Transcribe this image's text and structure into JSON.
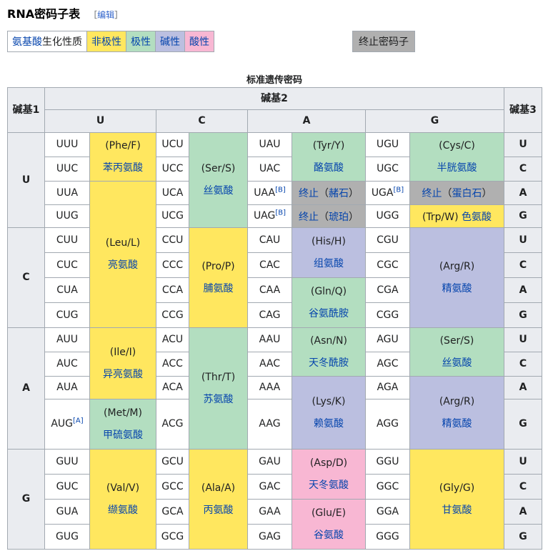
{
  "header": {
    "title": "RNA密码子表",
    "edit_open": "［",
    "edit_label": "编辑",
    "edit_close": "］"
  },
  "legend": {
    "link": "氨基酸",
    "rest": "生化性质",
    "nonpolar": "非极性",
    "polar": "极性",
    "basic": "碱性",
    "acidic": "酸性",
    "stop": "终止密码子"
  },
  "colors": {
    "nonpolar": "#ffe75f",
    "polar": "#b3dec0",
    "basic": "#bbbfe0",
    "acidic": "#f8b7d3",
    "stop": "#b0b0b0",
    "header": "#eaecf0",
    "link": "#0645ad"
  },
  "table": {
    "caption": "标准遗传密码",
    "base1_header": "碱基1",
    "base2_header": "碱基2",
    "base3_header": "碱基3",
    "base2": [
      "U",
      "C",
      "A",
      "G"
    ],
    "rows": [
      {
        "base1": "U",
        "codons": [
          [
            "UUU",
            "UCU",
            "UAU",
            "UGU"
          ],
          [
            "UUC",
            "UCC",
            "UAC",
            "UGC"
          ],
          [
            "UUA",
            "UCA",
            "UAA",
            "UGA"
          ],
          [
            "UUG",
            "UCG",
            "UAG",
            "UGG"
          ]
        ],
        "base3": [
          "U",
          "C",
          "A",
          "G"
        ]
      },
      {
        "base1": "C",
        "codons": [
          [
            "CUU",
            "CCU",
            "CAU",
            "CGU"
          ],
          [
            "CUC",
            "CCC",
            "CAC",
            "CGC"
          ],
          [
            "CUA",
            "CCA",
            "CAA",
            "CGA"
          ],
          [
            "CUG",
            "CCG",
            "CAG",
            "CGG"
          ]
        ],
        "base3": [
          "U",
          "C",
          "A",
          "G"
        ]
      },
      {
        "base1": "A",
        "codons": [
          [
            "AUU",
            "ACU",
            "AAU",
            "AGU"
          ],
          [
            "AUC",
            "ACC",
            "AAC",
            "AGC"
          ],
          [
            "AUA",
            "ACA",
            "AAA",
            "AGA"
          ],
          [
            "AUG",
            "ACG",
            "AAG",
            "AGG"
          ]
        ],
        "base3": [
          "U",
          "C",
          "A",
          "G"
        ]
      },
      {
        "base1": "G",
        "codons": [
          [
            "GUU",
            "GCU",
            "GAU",
            "GGU"
          ],
          [
            "GUC",
            "GCC",
            "GAC",
            "GGC"
          ],
          [
            "GUA",
            "GCA",
            "GAA",
            "GGA"
          ],
          [
            "GUG",
            "GCG",
            "GAG",
            "GGG"
          ]
        ],
        "base3": [
          "U",
          "C",
          "A",
          "G"
        ]
      }
    ],
    "footnotes": {
      "A": "[A]",
      "B": "[B]"
    },
    "aa": {
      "phe": {
        "code": "(Phe/F)",
        "name": "苯丙氨酸"
      },
      "leu": {
        "code": "(Leu/L)",
        "name": "亮氨酸"
      },
      "ser": {
        "code": "(Ser/S)",
        "name": "丝氨酸"
      },
      "tyr": {
        "code": "(Tyr/Y)",
        "name": "酪氨酸"
      },
      "cys": {
        "code": "(Cys/C)",
        "name": "半胱氨酸"
      },
      "stop_ochre": {
        "label": "终止",
        "open": "（",
        "name": "赭石",
        "close": "）"
      },
      "stop_opal": {
        "label": "终止",
        "open": "（",
        "name": "蛋白石",
        "close": "）"
      },
      "stop_amber": {
        "label": "终止",
        "open": "（",
        "name": "琥珀",
        "close": "）"
      },
      "trp": {
        "code": "(Trp/W)",
        "name": "色氨酸"
      },
      "pro": {
        "code": "(Pro/P)",
        "name": "脯氨酸"
      },
      "his": {
        "code": "(His/H)",
        "name": "组氨酸"
      },
      "gln": {
        "code": "(Gln/Q)",
        "name": "谷氨酰胺"
      },
      "arg": {
        "code": "(Arg/R)",
        "name": "精氨酸"
      },
      "ile": {
        "code": "(Ile/I)",
        "name": "异亮氨酸"
      },
      "met": {
        "code": "(Met/M)",
        "name": "甲硫氨酸"
      },
      "thr": {
        "code": "(Thr/T)",
        "name": "苏氨酸"
      },
      "asn": {
        "code": "(Asn/N)",
        "name": "天冬酰胺"
      },
      "lys": {
        "code": "(Lys/K)",
        "name": "赖氨酸"
      },
      "ser2": {
        "code": "(Ser/S)",
        "name": "丝氨酸"
      },
      "arg2": {
        "code": "(Arg/R)",
        "name": "精氨酸"
      },
      "val": {
        "code": "(Val/V)",
        "name": "缬氨酸"
      },
      "ala": {
        "code": "(Ala/A)",
        "name": "丙氨酸"
      },
      "asp": {
        "code": "(Asp/D)",
        "name": "天冬氨酸"
      },
      "glu": {
        "code": "(Glu/E)",
        "name": "谷氨酸"
      },
      "gly": {
        "code": "(Gly/G)",
        "name": "甘氨酸"
      }
    }
  }
}
